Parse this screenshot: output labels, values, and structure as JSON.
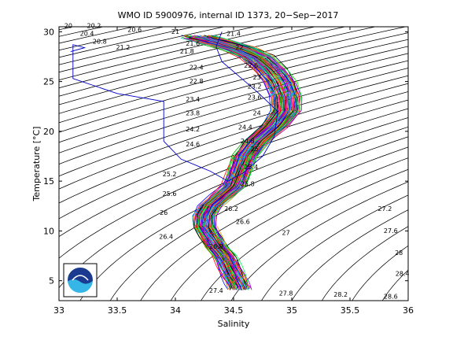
{
  "chart_data": {
    "type": "line",
    "title": "WMO ID 5900976, internal ID 1373, 20−Sep−2017",
    "xlabel": "Salinity",
    "ylabel": "Temperature [°C]",
    "xlim": [
      33,
      36
    ],
    "ylim": [
      3,
      30.5
    ],
    "x_ticks": [
      "33",
      "33.5",
      "34",
      "34.5",
      "35",
      "35.5",
      "36"
    ],
    "y_ticks": [
      "5",
      "10",
      "15",
      "20",
      "25",
      "30"
    ],
    "grid": false,
    "logo": {
      "text": "NOAA",
      "colors": [
        "#1a3a8f",
        "#35b6e6",
        "#ffffff"
      ]
    },
    "density_contours": [
      "20",
      "20.2",
      "20.4",
      "20.6",
      "20.8",
      "21",
      "21.2",
      "21.4",
      "21.6",
      "21.8",
      "22",
      "22.2",
      "22.4",
      "22.6",
      "22.8",
      "23",
      "23.2",
      "23.4",
      "23.6",
      "23.8",
      "24",
      "24.2",
      "24.4",
      "24.6",
      "24.8",
      "25",
      "25.2",
      "25.4",
      "25.6",
      "25.8",
      "26",
      "26.2",
      "26.4",
      "26.6",
      "26.8",
      "27",
      "27.2",
      "27.4",
      "27.6",
      "27.8",
      "28",
      "28.2",
      "28.4",
      "28.6"
    ],
    "contour_label_positions": [
      {
        "label": "20",
        "s": 33.08,
        "t": 30.4
      },
      {
        "label": "20.2",
        "s": 33.3,
        "t": 30.4
      },
      {
        "label": "20.4",
        "s": 33.24,
        "t": 29.6
      },
      {
        "label": "20.6",
        "s": 33.65,
        "t": 30.0
      },
      {
        "label": "20.8",
        "s": 33.35,
        "t": 28.8
      },
      {
        "label": "21",
        "s": 34.0,
        "t": 29.8
      },
      {
        "label": "21.2",
        "s": 33.55,
        "t": 28.2
      },
      {
        "label": "21.4",
        "s": 34.5,
        "t": 29.6
      },
      {
        "label": "21.6",
        "s": 34.15,
        "t": 28.6
      },
      {
        "label": "21.8",
        "s": 34.1,
        "t": 27.8
      },
      {
        "label": "22",
        "s": 34.55,
        "t": 28.2
      },
      {
        "label": "22.4",
        "s": 34.18,
        "t": 26.2
      },
      {
        "label": "22.6",
        "s": 34.65,
        "t": 26.4
      },
      {
        "label": "22.8",
        "s": 34.18,
        "t": 24.8
      },
      {
        "label": "23",
        "s": 34.7,
        "t": 25.2
      },
      {
        "label": "23.2",
        "s": 34.68,
        "t": 24.3
      },
      {
        "label": "23.4",
        "s": 34.15,
        "t": 23.0
      },
      {
        "label": "23.6",
        "s": 34.68,
        "t": 23.2
      },
      {
        "label": "23.8",
        "s": 34.15,
        "t": 21.6
      },
      {
        "label": "24",
        "s": 34.7,
        "t": 21.6
      },
      {
        "label": "24.2",
        "s": 34.15,
        "t": 20.0
      },
      {
        "label": "24.4",
        "s": 34.6,
        "t": 20.2
      },
      {
        "label": "24.6",
        "s": 34.15,
        "t": 18.5
      },
      {
        "label": "24.8",
        "s": 34.62,
        "t": 18.8
      },
      {
        "label": "25",
        "s": 34.68,
        "t": 18.0
      },
      {
        "label": "25.2",
        "s": 33.95,
        "t": 15.5
      },
      {
        "label": "25.4",
        "s": 34.65,
        "t": 16.2
      },
      {
        "label": "25.6",
        "s": 33.95,
        "t": 13.5
      },
      {
        "label": "25.8",
        "s": 34.62,
        "t": 14.5
      },
      {
        "label": "26",
        "s": 33.9,
        "t": 11.6
      },
      {
        "label": "26.2",
        "s": 34.48,
        "t": 12.0
      },
      {
        "label": "26.4",
        "s": 33.92,
        "t": 9.2
      },
      {
        "label": "26.6",
        "s": 34.58,
        "t": 10.7
      },
      {
        "label": "26.8",
        "s": 34.35,
        "t": 8.2
      },
      {
        "label": "27",
        "s": 34.95,
        "t": 9.6
      },
      {
        "label": "27.2",
        "s": 35.8,
        "t": 12.0
      },
      {
        "label": "27.4",
        "s": 34.35,
        "t": 3.8
      },
      {
        "label": "27.6",
        "s": 35.85,
        "t": 9.8
      },
      {
        "label": "27.8",
        "s": 34.95,
        "t": 3.5
      },
      {
        "label": "28",
        "s": 35.92,
        "t": 7.6
      },
      {
        "label": "28.2",
        "s": 35.42,
        "t": 3.4
      },
      {
        "label": "28.4",
        "s": 35.95,
        "t": 5.5
      },
      {
        "label": "28.6",
        "s": 35.85,
        "t": 3.2
      }
    ],
    "reference_profile": {
      "name": "",
      "color": "#0000cc",
      "points": [
        [
          33.1,
          28.0
        ],
        [
          33.22,
          28.4
        ],
        [
          33.12,
          28.7
        ],
        [
          33.12,
          27.2
        ],
        [
          33.12,
          25.3
        ],
        [
          33.5,
          23.8
        ],
        [
          33.9,
          23.0
        ],
        [
          33.9,
          20.3
        ],
        [
          33.9,
          19.0
        ],
        [
          34.05,
          17.2
        ],
        [
          34.3,
          16.0
        ],
        [
          34.45,
          15.0
        ],
        [
          34.58,
          15.8
        ],
        [
          34.75,
          17.5
        ],
        [
          34.85,
          19.5
        ],
        [
          34.88,
          22.0
        ],
        [
          34.7,
          24.0
        ],
        [
          34.55,
          25.5
        ],
        [
          34.4,
          27.0
        ],
        [
          34.35,
          28.5
        ],
        [
          34.4,
          30.0
        ]
      ]
    },
    "profile_envelope": {
      "count": 70,
      "points": [
        [
          34.2,
          29.5
        ],
        [
          34.35,
          29.0
        ],
        [
          34.55,
          28.3
        ],
        [
          34.7,
          27.5
        ],
        [
          34.82,
          26.2
        ],
        [
          34.9,
          25.0
        ],
        [
          34.95,
          23.5
        ],
        [
          34.95,
          22.0
        ],
        [
          34.85,
          20.5
        ],
        [
          34.7,
          19.0
        ],
        [
          34.6,
          17.5
        ],
        [
          34.55,
          16.0
        ],
        [
          34.5,
          14.5
        ],
        [
          34.4,
          13.5
        ],
        [
          34.3,
          12.5
        ],
        [
          34.25,
          11.5
        ],
        [
          34.25,
          10.5
        ],
        [
          34.3,
          9.5
        ],
        [
          34.35,
          8.5
        ],
        [
          34.42,
          7.5
        ],
        [
          34.46,
          6.5
        ],
        [
          34.5,
          5.5
        ],
        [
          34.53,
          4.8
        ],
        [
          34.55,
          4.2
        ]
      ]
    }
  }
}
